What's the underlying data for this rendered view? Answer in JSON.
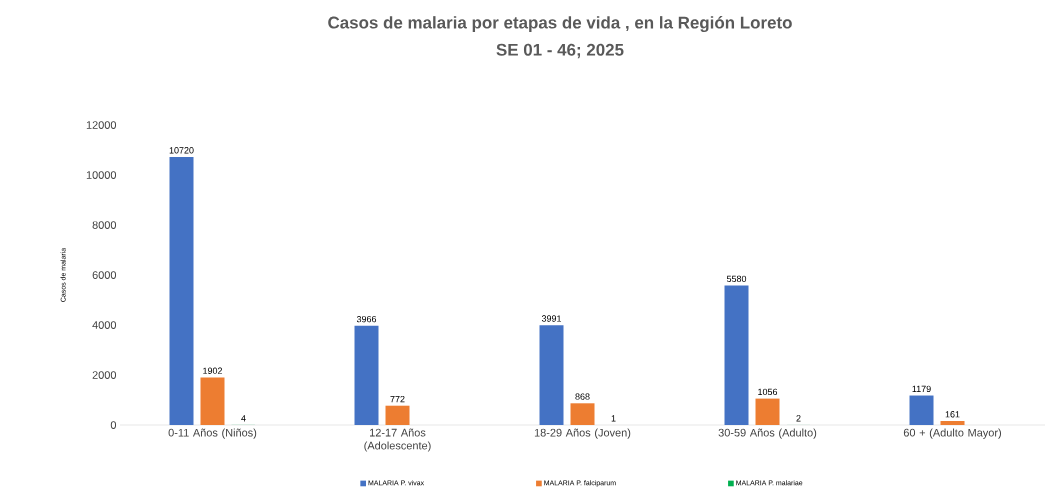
{
  "chart_data": {
    "type": "bar",
    "title": "Casos de malaria por etapas de vida , en la Región Loreto",
    "subtitle": "SE 01 -  46; 2025",
    "ylabel": "Casos de malaria",
    "categories": [
      "0-11 Años (Niños)",
      "12-17 Años (Adolescente)",
      "18-29 Años (Joven)",
      "30-59 Años (Adulto)",
      "60 + (Adulto Mayor)"
    ],
    "series": [
      {
        "name": "MALARIA P. vivax",
        "color": "#4472c4",
        "values": [
          10720,
          3966,
          3991,
          5580,
          1179
        ]
      },
      {
        "name": "MALARIA P. falciparum",
        "color": "#ed7d31",
        "values": [
          1902,
          772,
          868,
          1056,
          161
        ]
      },
      {
        "name": "MALARIA P. malariae",
        "color": "#00b050",
        "values": [
          4,
          null,
          1,
          2,
          null
        ]
      }
    ],
    "ylim": [
      0,
      12000
    ],
    "yticks": [
      0,
      2000,
      4000,
      6000,
      8000,
      10000,
      12000
    ],
    "data_labels": true,
    "legend": "bottom"
  }
}
